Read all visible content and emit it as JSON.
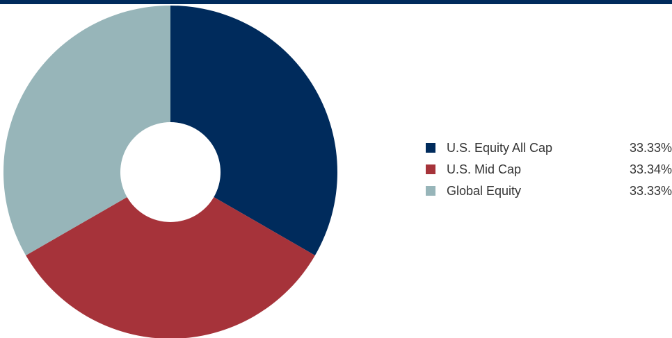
{
  "chart_data": {
    "type": "pie",
    "donut": true,
    "title": "",
    "legend_placement": "right",
    "categories": [
      "U.S. Equity All Cap",
      "U.S. Mid Cap",
      "Global Equity"
    ],
    "values": [
      33.33,
      33.34,
      33.33
    ],
    "value_labels": [
      "33.33%",
      "33.34%",
      "33.33%"
    ],
    "colors": [
      "#002b5c",
      "#a6333a",
      "#97b5b9"
    ]
  }
}
